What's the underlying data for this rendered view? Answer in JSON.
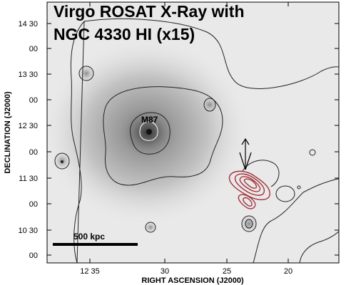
{
  "figure": {
    "title_line1": "Virgo ROSAT X-Ray with",
    "title_line2": "NGC 4330 HI (x15)",
    "xlabel": "RIGHT ASCENSION (J2000)",
    "ylabel": "DECLINATION (J2000)",
    "x_ticks": [
      "12 35",
      "30",
      "25",
      "20"
    ],
    "y_ticks": [
      "14 30",
      "00",
      "13 30",
      "00",
      "12 30",
      "00",
      "11 30",
      "00",
      "10 30",
      "00"
    ],
    "scalebar_label": "500 kpc",
    "source_label": "M87",
    "colors": {
      "xray_contour": "#222222",
      "hi_contour": "#a3333b",
      "background_light": "#e9e9e9",
      "halo_dark": "#9a9a9a"
    }
  }
}
